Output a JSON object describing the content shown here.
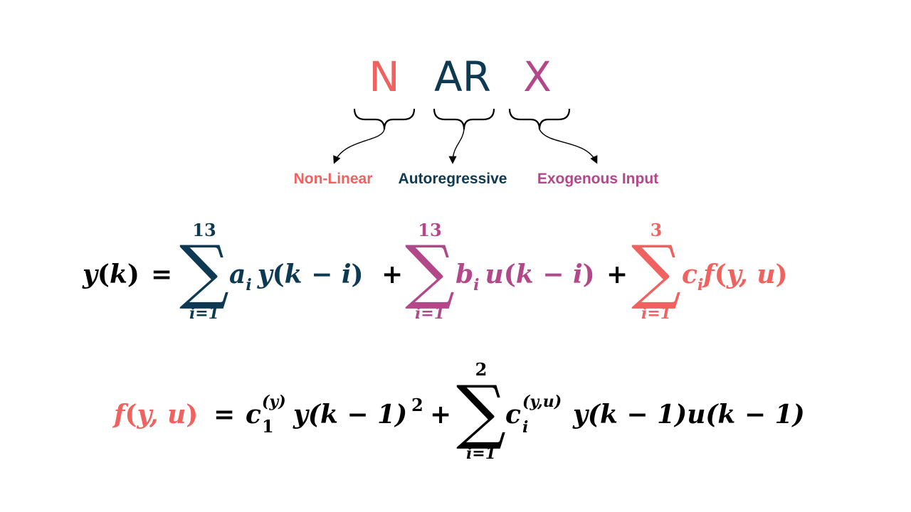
{
  "colors": {
    "nonlinear": "#f0625f",
    "ar": "#0d3a52",
    "exo": "#b2488a",
    "text": "#000000"
  },
  "acronym": {
    "n": "N",
    "ar": "AR",
    "x": "X"
  },
  "labels": {
    "nonlinear": "Non-Linear",
    "autoregressive": "Autoregressive",
    "exogenous": "Exogenous Input"
  },
  "equation1": {
    "lhs": "y",
    "lhs_arg": "k",
    "ar_sum": {
      "upper": "13",
      "lower": "i=1",
      "coef": "a",
      "coef_sub": "i",
      "term_fn": "y",
      "term_arg": "k − i"
    },
    "exo_sum": {
      "upper": "13",
      "lower": "i=1",
      "coef": "b",
      "coef_sub": "i",
      "term_fn": "u",
      "term_arg": "k − i"
    },
    "nl_sum": {
      "upper": "3",
      "lower": "i=1",
      "coef": "c",
      "coef_sub": "i",
      "term_fn": "f",
      "term_arg": "y, u"
    }
  },
  "equation2": {
    "lhs_fn": "f",
    "lhs_arg": "y, u",
    "term1": {
      "coef": "c",
      "coef_sub": "1",
      "coef_sup": "(y)",
      "body": "y(k − 1)",
      "power": "2"
    },
    "sum": {
      "upper": "2",
      "lower": "i=1",
      "coef": "c",
      "coef_sub": "i",
      "coef_sup": "(y,u)",
      "body": "y(k − 1)u(k − 1)"
    }
  }
}
